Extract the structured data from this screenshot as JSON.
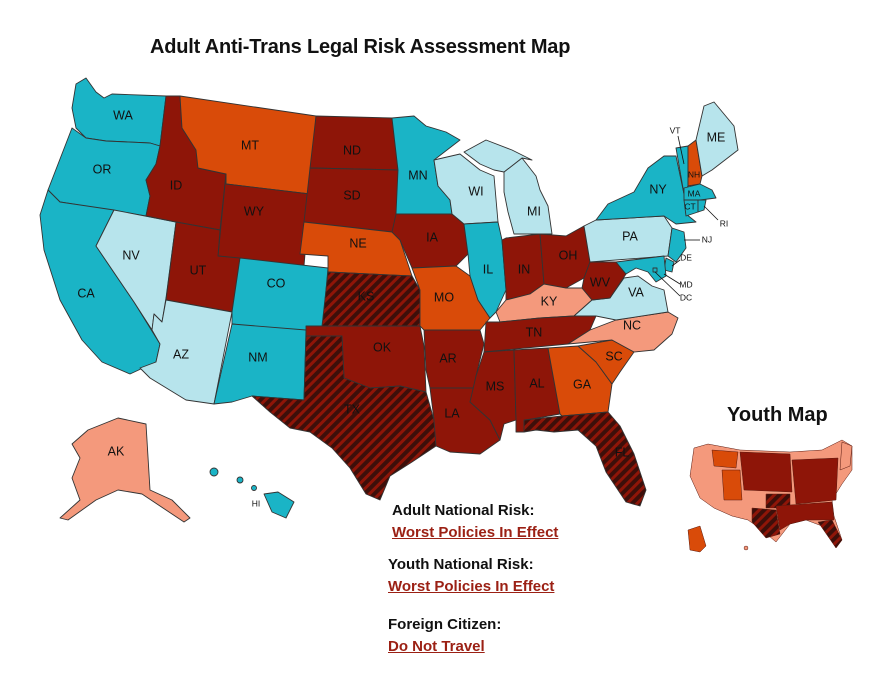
{
  "title": "Adult Anti-Trans Legal Risk Assessment Map",
  "youth_map_title": "Youth Map",
  "colors": {
    "safest": "#1ab4c6",
    "low": "#b7e4ec",
    "moderate": "#f4997c",
    "high": "#d94b09",
    "very_high": "#8e1508",
    "worst": "#3d0f0a",
    "link": "#9b2014"
  },
  "states": {
    "WA": "WA",
    "OR": "OR",
    "CA": "CA",
    "NV": "NV",
    "ID": "ID",
    "MT": "MT",
    "WY": "WY",
    "UT": "UT",
    "AZ": "AZ",
    "CO": "CO",
    "NM": "NM",
    "ND": "ND",
    "SD": "SD",
    "NE": "NE",
    "KS": "KS",
    "OK": "OK",
    "TX": "TX",
    "MN": "MN",
    "IA": "IA",
    "MO": "MO",
    "AR": "AR",
    "LA": "LA",
    "WI": "WI",
    "IL": "IL",
    "MI": "MI",
    "IN": "IN",
    "OH": "OH",
    "KY": "KY",
    "TN": "TN",
    "MS": "MS",
    "AL": "AL",
    "GA": "GA",
    "FL": "FL",
    "SC": "SC",
    "NC": "NC",
    "VA": "VA",
    "WV": "WV",
    "PA": "PA",
    "NY": "NY",
    "VT": "VT",
    "NH": "NH",
    "ME": "ME",
    "MA": "MA",
    "CT": "CT",
    "RI": "RI",
    "NJ": "NJ",
    "DE": "DE",
    "MD": "MD",
    "DC": "DC",
    "AK": "AK",
    "HI": "HI"
  },
  "national_risk": {
    "adult_label": "Adult National Risk:",
    "adult_value": "Worst Policies In Effect",
    "youth_label": "Youth National Risk:",
    "youth_value": "Worst Policies In Effect",
    "foreign_label": "Foreign Citizen:",
    "foreign_value": "Do Not Travel"
  }
}
